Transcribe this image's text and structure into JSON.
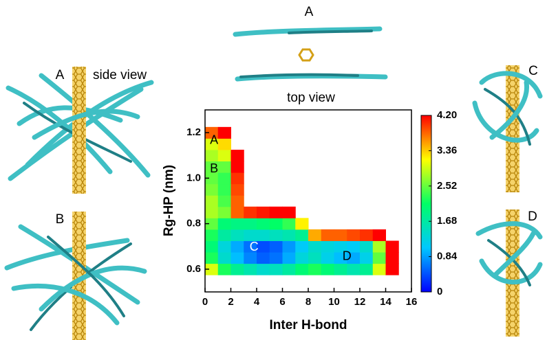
{
  "chart_data": {
    "type": "heatmap",
    "xlabel": "Inter H-bond",
    "ylabel": "Rg-HP (nm)",
    "xlim": [
      0,
      16
    ],
    "xticks": [
      0,
      2,
      4,
      6,
      8,
      10,
      12,
      14,
      16
    ],
    "ylim": [
      0.5,
      1.3
    ],
    "yticks": [
      {
        "value": 0.6,
        "label": "0.6"
      },
      {
        "value": 0.8,
        "label": "0.8"
      },
      {
        "value": 1.0,
        "label": "1.0"
      },
      {
        "value": 1.2,
        "label": "1.2"
      }
    ],
    "x": [
      0.5,
      1.5,
      2.5,
      3.5,
      4.5,
      5.5,
      6.5,
      7.5,
      8.5,
      9.5,
      10.5,
      11.5,
      12.5,
      13.5,
      14.5
    ],
    "y": [
      0.6,
      0.65,
      0.7,
      0.75,
      0.8,
      0.85,
      0.9,
      0.95,
      1.0,
      1.05,
      1.1,
      1.15,
      1.2
    ],
    "z": [
      [
        3.0,
        2.2,
        1.8,
        1.6,
        1.4,
        1.5,
        1.7,
        2.0,
        2.2,
        2.0,
        1.8,
        1.6,
        1.8,
        3.0,
        4.2
      ],
      [
        2.2,
        1.4,
        1.0,
        0.7,
        0.5,
        0.6,
        0.9,
        1.3,
        1.5,
        1.2,
        1.0,
        0.9,
        1.2,
        2.5,
        4.2
      ],
      [
        2.0,
        1.3,
        0.9,
        0.6,
        0.4,
        0.5,
        0.8,
        1.1,
        1.4,
        1.3,
        1.2,
        1.1,
        1.4,
        2.8,
        4.2
      ],
      [
        2.2,
        1.7,
        1.5,
        1.4,
        1.4,
        1.5,
        1.6,
        1.8,
        3.5,
        3.8,
        3.8,
        3.9,
        4.0,
        4.2,
        null
      ],
      [
        2.5,
        2.0,
        1.9,
        1.9,
        2.0,
        2.1,
        2.3,
        3.2,
        null,
        null,
        null,
        null,
        null,
        null,
        null
      ],
      [
        2.8,
        2.6,
        3.8,
        4.0,
        4.1,
        4.2,
        4.2,
        null,
        null,
        null,
        null,
        null,
        null,
        null,
        null
      ],
      [
        2.8,
        2.4,
        3.8,
        null,
        null,
        null,
        null,
        null,
        null,
        null,
        null,
        null,
        null,
        null,
        null
      ],
      [
        2.6,
        2.3,
        3.9,
        null,
        null,
        null,
        null,
        null,
        null,
        null,
        null,
        null,
        null,
        null,
        null
      ],
      [
        2.5,
        2.3,
        4.0,
        null,
        null,
        null,
        null,
        null,
        null,
        null,
        null,
        null,
        null,
        null,
        null
      ],
      [
        2.5,
        2.5,
        4.2,
        null,
        null,
        null,
        null,
        null,
        null,
        null,
        null,
        null,
        null,
        null,
        null
      ],
      [
        2.8,
        3.0,
        4.2,
        null,
        null,
        null,
        null,
        null,
        null,
        null,
        null,
        null,
        null,
        null,
        null
      ],
      [
        3.0,
        3.3,
        null,
        null,
        null,
        null,
        null,
        null,
        null,
        null,
        null,
        null,
        null,
        null,
        null
      ],
      [
        3.8,
        4.2,
        null,
        null,
        null,
        null,
        null,
        null,
        null,
        null,
        null,
        null,
        null,
        null,
        null
      ]
    ],
    "clim": [
      0,
      4.2
    ],
    "colorscale": [
      "#0000ff",
      "#00c8ff",
      "#00ff66",
      "#ffff00",
      "#ff0000"
    ],
    "colorbar_ticks": [
      {
        "value": 0,
        "label": "0"
      },
      {
        "value": 0.84,
        "label": "0.84"
      },
      {
        "value": 1.68,
        "label": "1.68"
      },
      {
        "value": 2.52,
        "label": "2.52"
      },
      {
        "value": 3.36,
        "label": "3.36"
      },
      {
        "value": 4.2,
        "label": "4.20"
      }
    ],
    "annotations": [
      "A",
      "B",
      "C",
      "D"
    ]
  },
  "panels": {
    "side": {
      "label": "A",
      "caption": "side view"
    },
    "top": {
      "label": "A",
      "caption": "top view"
    },
    "b": "B",
    "c": "C",
    "d": "D"
  }
}
